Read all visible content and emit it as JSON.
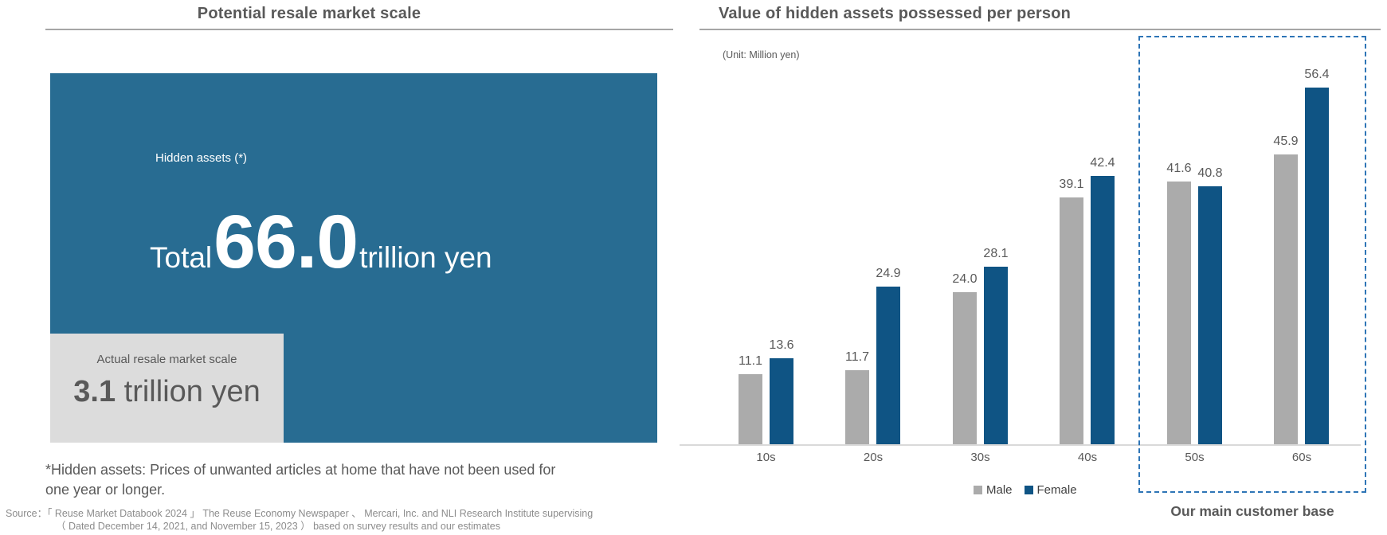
{
  "left_panel": {
    "title": "Potential resale market scale",
    "hidden_assets_label": "Hidden assets (*)",
    "total_prefix": "Total",
    "total_value": "66.0",
    "total_suffix": "trillion yen",
    "actual_label": "Actual resale market scale",
    "actual_value": "3.1",
    "actual_suffix": " trillion yen",
    "footnote_line1": "*Hidden assets: Prices of unwanted articles at home that have not been used for",
    "footnote_line2": "one year or longer.",
    "source_label": "Source：",
    "source_line1": "「 Reuse Market Databook 2024 」  The Reuse Economy Newspaper 、  Mercari, Inc. and  NLI Research Institute supervising",
    "source_line2": "（ Dated December 14, 2021, and November 15, 2023 ）   based on survey results and our estimates"
  },
  "right_panel": {
    "title": "Value of hidden assets possessed per person",
    "unit_label": "(Unit: Million yen)",
    "annotation": "Our main customer base"
  },
  "chart_data": {
    "type": "bar",
    "title": "Value of hidden assets possessed per person",
    "unit": "Million yen",
    "categories": [
      "10s",
      "20s",
      "30s",
      "40s",
      "50s",
      "60s"
    ],
    "series": [
      {
        "name": "Male",
        "color": "#ababab",
        "values": [
          11.1,
          11.7,
          24.0,
          39.1,
          41.6,
          45.9
        ]
      },
      {
        "name": "Female",
        "color": "#0f5484",
        "values": [
          13.6,
          24.9,
          28.1,
          42.4,
          40.8,
          56.4
        ]
      }
    ],
    "ylim": [
      0,
      60
    ],
    "grid": false,
    "legend_position": "bottom",
    "value_labels": true,
    "highlight_groups": [
      "50s",
      "60s"
    ],
    "highlight_label": "Our main customer base"
  },
  "colors": {
    "hidden_assets_box": "#286c92",
    "actual_resale_box": "#dcdcdc",
    "male_bar": "#ababab",
    "female_bar": "#0f5484",
    "highlight_border": "#2e75b6",
    "title_text": "#595959",
    "axis_line": "#d9d9d9"
  }
}
